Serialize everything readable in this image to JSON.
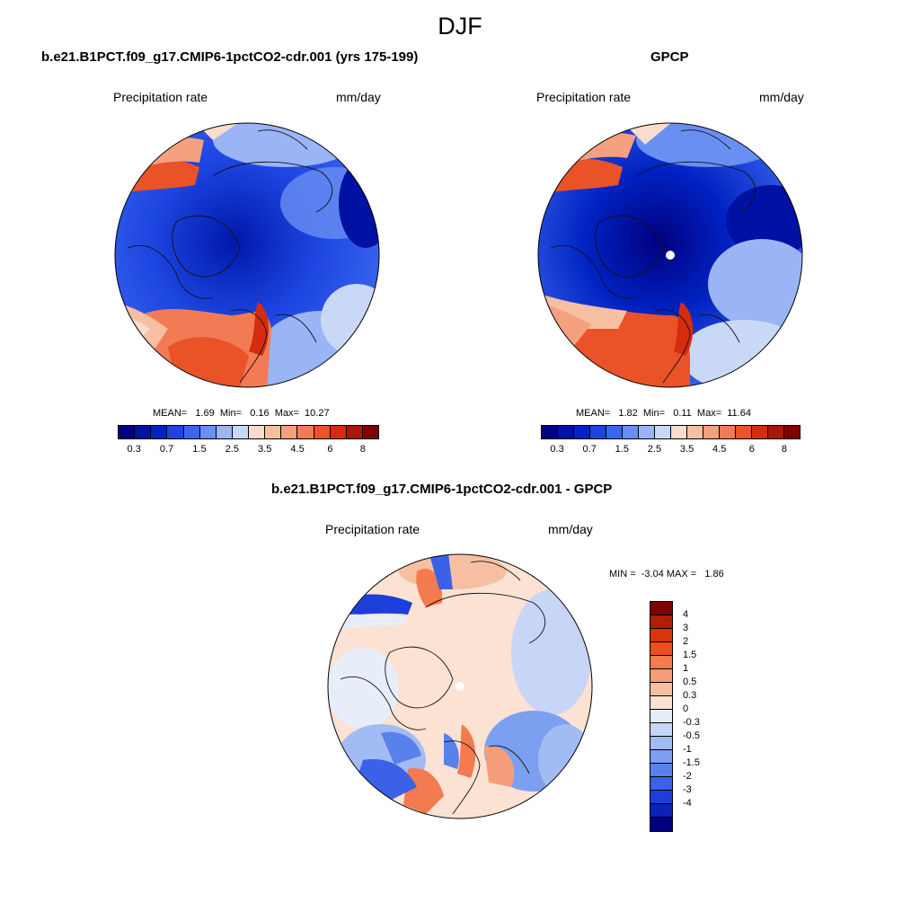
{
  "season": "DJF",
  "panels": {
    "model": {
      "title": "b.e21.B1PCT.f09_g17.CMIP6-1pctCO2-cdr.001 (yrs 175-199)",
      "left_label": "Precipitation rate",
      "right_label": "mm/day",
      "stats": "MEAN=   1.69  Min=   0.16  Max=  10.27"
    },
    "obs": {
      "title": "GPCP",
      "left_label": "Precipitation rate",
      "right_label": "mm/day",
      "stats": "MEAN=   1.82  Min=   0.11  Max=  11.64"
    },
    "diff": {
      "title": "b.e21.B1PCT.f09_g17.CMIP6-1pctCO2-cdr.001 - GPCP",
      "left_label": "Precipitation rate",
      "right_label": "mm/day",
      "stats": "MIN =  -3.04 MAX =   1.86"
    }
  },
  "colorbar_abs": {
    "colors": [
      "#00007f",
      "#0011a3",
      "#0022c2",
      "#1c44e0",
      "#3a66ee",
      "#6a8ff2",
      "#9ab4f5",
      "#c9d8f7",
      "#f8dccc",
      "#f7bfa2",
      "#f5a07f",
      "#f27a55",
      "#ea5228",
      "#d42c0c",
      "#a61a05",
      "#7f0000"
    ],
    "tick_labels": [
      "0.3",
      "0.7",
      "1.5",
      "2.5",
      "3.5",
      "4.5",
      "6",
      "8"
    ]
  },
  "colorbar_diff": {
    "colors": [
      "#7f0000",
      "#b01f05",
      "#d8360c",
      "#ee4f1e",
      "#f47a50",
      "#f59d7a",
      "#f7bfa2",
      "#fbe2d2",
      "#e8eef9",
      "#c7d6f6",
      "#a2bbf3",
      "#7c9ff0",
      "#5881ec",
      "#3a61e8",
      "#1c3fd9",
      "#0a22b8",
      "#00007f"
    ],
    "labels": [
      "4",
      "3",
      "2",
      "1.5",
      "1",
      "0.5",
      "0.3",
      "0",
      "-0.3",
      "-0.5",
      "-1",
      "-1.5",
      "-2",
      "-3",
      "-4"
    ]
  }
}
